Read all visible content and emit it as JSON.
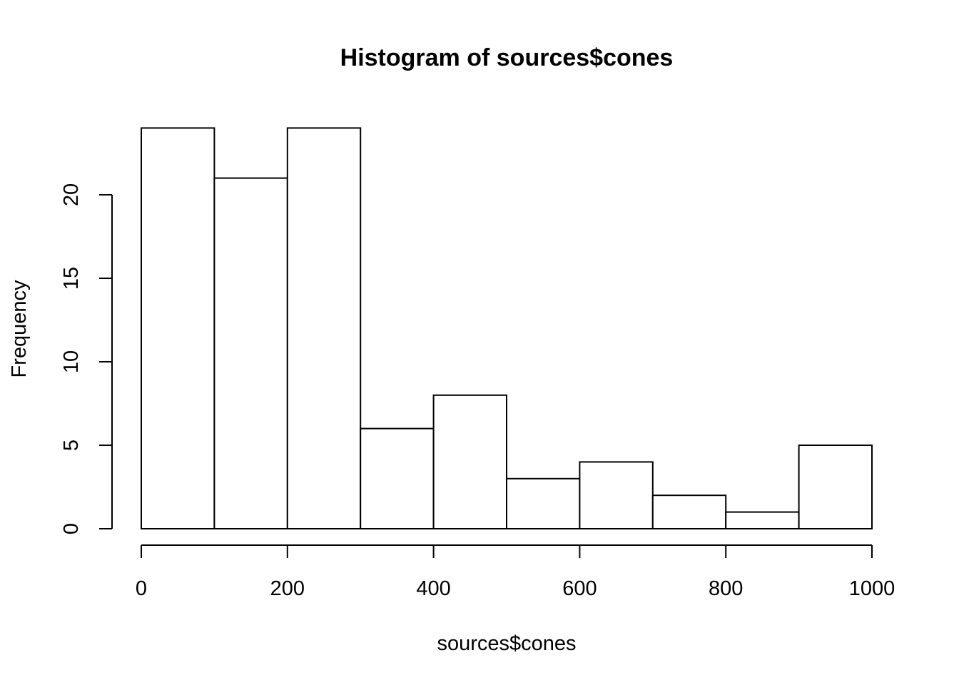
{
  "chart_data": {
    "type": "bar",
    "title": "Histogram of sources$cones",
    "xlabel": "sources$cones",
    "ylabel": "Frequency",
    "bin_edges": [
      0,
      100,
      200,
      300,
      400,
      500,
      600,
      700,
      800,
      900,
      1000
    ],
    "counts": [
      24,
      21,
      24,
      6,
      8,
      3,
      4,
      2,
      1,
      5
    ],
    "x_ticks": [
      0,
      200,
      400,
      600,
      800,
      1000
    ],
    "x_tick_labels": [
      "0",
      "200",
      "400",
      "600",
      "800",
      "1000"
    ],
    "y_ticks": [
      0,
      5,
      10,
      15,
      20
    ],
    "y_tick_labels": [
      "0",
      "5",
      "10",
      "15",
      "20"
    ],
    "xlim": [
      0,
      1000
    ],
    "ylim": [
      0,
      24
    ],
    "grid": false,
    "colors": {
      "bar_fill": "#ffffff",
      "bar_stroke": "#000000"
    }
  }
}
